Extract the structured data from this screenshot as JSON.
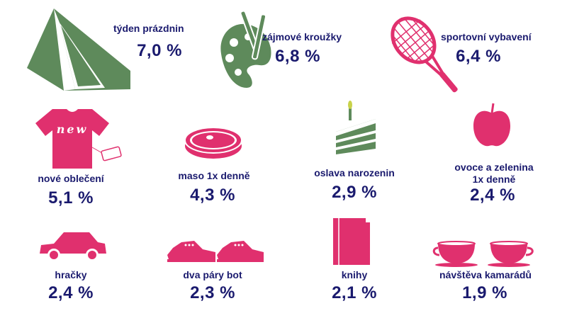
{
  "colors": {
    "text": "#1a1a6e",
    "pink": "#e0306e",
    "green": "#5e8a5b"
  },
  "chart_data": {
    "type": "table",
    "items": [
      {
        "label": "týden prázdnin",
        "value": "7,0 %",
        "icon": "tent-icon",
        "color": "green"
      },
      {
        "label": "zájmové kroužky",
        "value": "6,8 %",
        "icon": "palette-icon",
        "color": "green"
      },
      {
        "label": "sportovní vybavení",
        "value": "6,4 %",
        "icon": "tennis-racket-icon",
        "color": "pink"
      },
      {
        "label": "nové oblečení",
        "value": "5,1 %",
        "icon": "tshirt-icon",
        "color": "pink",
        "icon_text": "new"
      },
      {
        "label": "maso 1x denně",
        "value": "4,3 %",
        "icon": "steak-icon",
        "color": "pink"
      },
      {
        "label": "oslava narozenin",
        "value": "2,9 %",
        "icon": "cake-icon",
        "color": "green"
      },
      {
        "label": "ovoce a zelenina\n1x denně",
        "value": "2,4 %",
        "icon": "apple-icon",
        "color": "pink"
      },
      {
        "label": "hračky",
        "value": "2,4 %",
        "icon": "toy-car-icon",
        "color": "pink"
      },
      {
        "label": "dva páry bot",
        "value": "2,3 %",
        "icon": "shoes-icon",
        "color": "pink"
      },
      {
        "label": "knihy",
        "value": "2,1 %",
        "icon": "book-icon",
        "color": "pink"
      },
      {
        "label": "návštěva kamarádů",
        "value": "1,9 %",
        "icon": "teacups-icon",
        "color": "pink"
      }
    ]
  }
}
